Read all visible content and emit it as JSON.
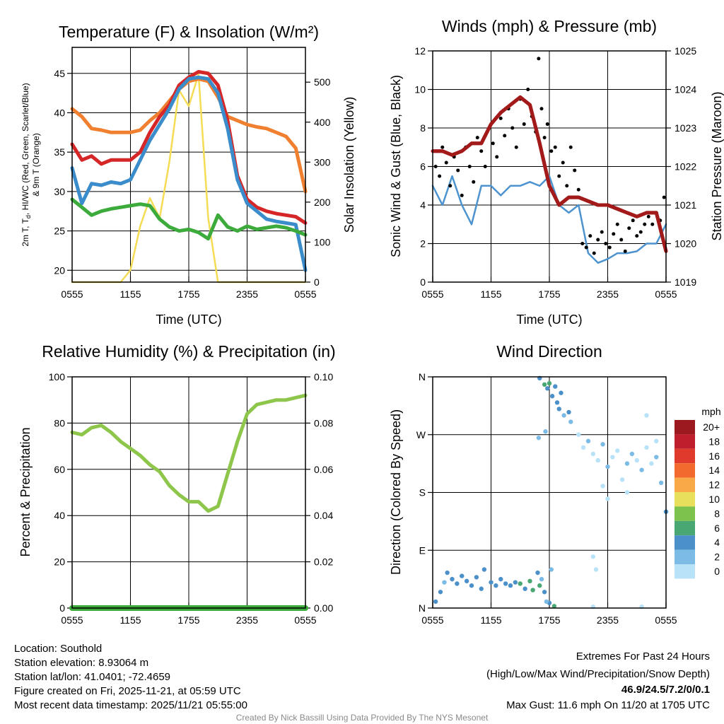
{
  "chart_data": [
    {
      "type": "line",
      "title": "Temperature (F) & Insolation (W/m²)",
      "xlabel": "Time (UTC)",
      "ylabel_parts": [
        "2m T, T",
        "d",
        ", HI/WC (Red, Green, Scarlet/Blue)",
        "& 9m T (Orange)"
      ],
      "ylabel_right": "Solar Insolation (Yellow)",
      "x_hours": [
        0,
        1,
        2,
        3,
        4,
        5,
        6,
        7,
        8,
        9,
        10,
        11,
        12,
        13,
        14,
        15,
        16,
        17,
        18,
        19,
        20,
        21,
        22,
        23,
        24
      ],
      "xtick_labels": [
        "0555",
        "1155",
        "1755",
        "2355",
        "0555"
      ],
      "ylim": [
        18.5,
        48.3
      ],
      "yticks": [
        "20",
        "25",
        "30",
        "35",
        "40",
        "45"
      ],
      "ylim_right": [
        0,
        587
      ],
      "yticks_right": [
        "0",
        "100",
        "200",
        "300",
        "400",
        "500"
      ],
      "series": [
        {
          "name": "9m T",
          "axis": "left",
          "color": "#f08030",
          "values": [
            40.5,
            39.5,
            38,
            37.8,
            37.5,
            37.5,
            37.5,
            37.8,
            39,
            40,
            41.5,
            43,
            44,
            44.3,
            44,
            42,
            39.5,
            39,
            38.5,
            38.2,
            38,
            37.5,
            37,
            35.5,
            30
          ]
        },
        {
          "name": "2m T",
          "axis": "left",
          "color": "#d62728",
          "values": [
            36,
            34,
            34.5,
            33.5,
            34,
            34,
            34,
            35,
            37.5,
            39.5,
            41,
            43.5,
            44.5,
            45.2,
            45,
            43.5,
            39,
            32,
            29,
            28,
            27.5,
            27.2,
            27,
            26.8,
            26
          ]
        },
        {
          "name": "HI/WC",
          "axis": "left",
          "color": "#3b8ccb",
          "values": [
            33,
            28.5,
            31,
            30.8,
            31.2,
            31,
            31.5,
            34,
            36.5,
            38.5,
            40.5,
            43,
            44.3,
            44.5,
            44.3,
            42.5,
            38,
            31.5,
            28.5,
            27.5,
            26.5,
            26.2,
            26,
            25.8,
            20
          ]
        },
        {
          "name": "Td",
          "axis": "left",
          "color": "#3cab3c",
          "values": [
            29,
            28,
            27,
            27.5,
            27.8,
            28,
            28.2,
            28.4,
            28.2,
            26.5,
            25.5,
            25,
            25.2,
            24.8,
            24,
            27,
            25.5,
            25,
            25.6,
            25.2,
            25.4,
            25.6,
            25.4,
            25,
            24.5
          ]
        },
        {
          "name": "Solar Insolation",
          "axis": "right",
          "color": "#f5dc55",
          "values": [
            0,
            0,
            0,
            0,
            0,
            0,
            30,
            140,
            210,
            160,
            300,
            480,
            440,
            520,
            160,
            0,
            0,
            0,
            0,
            0,
            0,
            0,
            0,
            0,
            0
          ]
        }
      ]
    },
    {
      "type": "line",
      "title": "Winds (mph) & Pressure (mb)",
      "xlabel": "Time (UTC)",
      "ylabel": "Sonic Wind & Gust (Blue, Black)",
      "ylabel_right": "Station Pressure (Maroon)",
      "x_hours": [
        0,
        1,
        2,
        3,
        4,
        5,
        6,
        7,
        8,
        9,
        10,
        11,
        12,
        13,
        14,
        15,
        16,
        17,
        18,
        19,
        20,
        21,
        22,
        23,
        24
      ],
      "xtick_labels": [
        "0555",
        "1155",
        "1755",
        "2355",
        "0555"
      ],
      "ylim": [
        0,
        12
      ],
      "yticks": [
        "0",
        "2",
        "4",
        "6",
        "8",
        "10",
        "12"
      ],
      "ylim_right": [
        1019,
        1025
      ],
      "yticks_right": [
        "1019",
        "1020",
        "1021",
        "1022",
        "1023",
        "1024",
        "1025"
      ],
      "series": [
        {
          "name": "Sonic Wind",
          "axis": "left",
          "color": "#4d93cf",
          "values": [
            5,
            4,
            5.5,
            4,
            3,
            5,
            5,
            4.5,
            5,
            5,
            5.2,
            5,
            5.5,
            4,
            3.6,
            4,
            1.5,
            1,
            1.2,
            1.5,
            1.5,
            1.6,
            2,
            2,
            3
          ]
        },
        {
          "name": "Station Pressure",
          "axis": "right",
          "color": "#a31a1a",
          "values": [
            1022.4,
            1022.4,
            1022.3,
            1022.4,
            1022.6,
            1022.6,
            1023.1,
            1023.4,
            1023.6,
            1023.8,
            1023.6,
            1022.6,
            1021.5,
            1021.0,
            1021.2,
            1021.2,
            1021.1,
            1021.0,
            1021.0,
            1020.9,
            1020.8,
            1020.7,
            1020.8,
            1020.8,
            1019.8
          ]
        }
      ],
      "gust_points": [
        [
          0.3,
          6
        ],
        [
          0.7,
          5.5
        ],
        [
          1,
          7
        ],
        [
          1.4,
          6.2
        ],
        [
          1.8,
          5
        ],
        [
          2.2,
          6.5
        ],
        [
          2.6,
          5.8
        ],
        [
          3,
          4.5
        ],
        [
          3.4,
          7
        ],
        [
          3.8,
          6
        ],
        [
          4.2,
          5.2
        ],
        [
          4.6,
          7.5
        ],
        [
          5,
          6.8
        ],
        [
          5.4,
          6
        ],
        [
          5.8,
          8
        ],
        [
          6.2,
          7.2
        ],
        [
          6.6,
          6.5
        ],
        [
          7,
          8.5
        ],
        [
          7.4,
          7.6
        ],
        [
          7.8,
          9
        ],
        [
          8.2,
          8
        ],
        [
          8.6,
          7
        ],
        [
          9,
          9.5
        ],
        [
          9.4,
          8.2
        ],
        [
          9.8,
          10
        ],
        [
          10.2,
          8.6
        ],
        [
          10.6,
          7.8
        ],
        [
          10.9,
          11.6
        ],
        [
          11.2,
          9
        ],
        [
          11.5,
          7.5
        ],
        [
          11.8,
          8.2
        ],
        [
          12.2,
          6.8
        ],
        [
          12.6,
          7
        ],
        [
          13,
          5.5
        ],
        [
          13.4,
          6.2
        ],
        [
          13.8,
          5
        ],
        [
          14.2,
          7
        ],
        [
          14.6,
          5.8
        ],
        [
          15,
          4.8
        ],
        [
          15.4,
          2
        ],
        [
          15.8,
          1.8
        ],
        [
          16.2,
          2.4
        ],
        [
          16.6,
          1.5
        ],
        [
          17,
          2.2
        ],
        [
          17.4,
          2.6
        ],
        [
          17.8,
          2
        ],
        [
          18.2,
          1.8
        ],
        [
          18.6,
          2.5
        ],
        [
          19,
          3
        ],
        [
          19.4,
          2.2
        ],
        [
          19.8,
          1.6
        ],
        [
          20.2,
          2.8
        ],
        [
          20.6,
          3.2
        ],
        [
          21,
          2.4
        ],
        [
          21.4,
          2.6
        ],
        [
          21.8,
          3
        ],
        [
          22.2,
          3.4
        ],
        [
          22.6,
          3
        ],
        [
          23,
          3.6
        ],
        [
          23.4,
          3.2
        ],
        [
          23.8,
          4.4
        ]
      ]
    },
    {
      "type": "line",
      "title": "Relative Humidity (%) & Precipitation (in)",
      "ylabel": "Percent & Precipitation",
      "x_hours": [
        0,
        1,
        2,
        3,
        4,
        5,
        6,
        7,
        8,
        9,
        10,
        11,
        12,
        13,
        14,
        15,
        16,
        17,
        18,
        19,
        20,
        21,
        22,
        23,
        24
      ],
      "xtick_labels": [
        "0555",
        "1155",
        "1755",
        "2355",
        "0555"
      ],
      "ylim": [
        0,
        100
      ],
      "yticks": [
        "0",
        "20",
        "40",
        "60",
        "80",
        "100"
      ],
      "ylim_right": [
        0,
        0.1
      ],
      "yticks_right": [
        "0.00",
        "0.02",
        "0.04",
        "0.06",
        "0.08",
        "0.10"
      ],
      "series": [
        {
          "name": "Relative Humidity",
          "axis": "left",
          "color": "#8dc64a",
          "values": [
            76,
            75,
            78,
            79,
            76,
            72,
            69,
            66,
            62,
            59,
            53,
            49,
            46,
            46,
            42,
            44,
            58,
            72,
            84,
            88,
            89,
            90,
            90,
            91,
            92
          ]
        },
        {
          "name": "Precipitation",
          "axis": "right",
          "color": "#3cab3c",
          "values": [
            0,
            0,
            0,
            0,
            0,
            0,
            0,
            0,
            0,
            0,
            0,
            0,
            0,
            0,
            0,
            0,
            0,
            0,
            0,
            0,
            0,
            0,
            0,
            0,
            0
          ]
        }
      ]
    },
    {
      "type": "scatter",
      "title": "Wind Direction",
      "ylabel": "Direction (Colored By Speed)",
      "xtick_labels": [
        "0555",
        "1155",
        "1755",
        "2355",
        "0555"
      ],
      "ylim": [
        0,
        360
      ],
      "yticks": [
        "N",
        "E",
        "S",
        "W",
        "N"
      ],
      "legend_title": "mph",
      "legend_labels": [
        "20+",
        "18",
        "16",
        "14",
        "12",
        "10",
        "8",
        "6",
        "4",
        "2",
        "0"
      ],
      "legend_colors": [
        "#9c1a1f",
        "#bf1e2d",
        "#e03a2c",
        "#f26a2e",
        "#f9a947",
        "#e8e05a",
        "#7dc24c",
        "#48a772",
        "#4b90c8",
        "#7cbbe6",
        "#b8e2f8"
      ],
      "points_hour_deg_mph": [
        [
          0.3,
          10,
          4
        ],
        [
          0.8,
          25,
          4
        ],
        [
          1.2,
          40,
          3
        ],
        [
          1.5,
          55,
          4
        ],
        [
          2,
          45,
          5
        ],
        [
          2.5,
          38,
          4
        ],
        [
          3,
          50,
          4
        ],
        [
          3.5,
          42,
          5
        ],
        [
          4,
          35,
          4
        ],
        [
          4.5,
          48,
          4
        ],
        [
          5,
          30,
          4
        ],
        [
          5.3,
          60,
          4
        ],
        [
          6,
          40,
          4
        ],
        [
          6.5,
          35,
          5
        ],
        [
          7,
          45,
          4
        ],
        [
          7.5,
          38,
          5
        ],
        [
          8,
          35,
          4
        ],
        [
          8.5,
          40,
          5
        ],
        [
          9,
          38,
          6
        ],
        [
          9.5,
          30,
          4
        ],
        [
          10,
          42,
          6
        ],
        [
          10.3,
          28,
          6
        ],
        [
          10.8,
          55,
          4
        ],
        [
          11,
          35,
          6
        ],
        [
          11.2,
          45,
          3
        ],
        [
          11.5,
          25,
          4
        ],
        [
          12,
          8,
          4
        ],
        [
          12.2,
          60,
          2
        ],
        [
          11.7,
          10,
          2
        ],
        [
          12.5,
          3,
          6
        ],
        [
          11,
          358,
          5
        ],
        [
          11.5,
          348,
          6
        ],
        [
          11.8,
          342,
          4
        ],
        [
          12,
          350,
          6
        ],
        [
          12.3,
          330,
          4
        ],
        [
          12.8,
          320,
          4
        ],
        [
          13,
          310,
          4
        ],
        [
          13.5,
          300,
          3
        ],
        [
          14,
          305,
          4
        ],
        [
          14.2,
          290,
          3
        ],
        [
          13.2,
          335,
          4
        ],
        [
          12.6,
          345,
          4
        ],
        [
          11.6,
          275,
          3
        ],
        [
          10.9,
          265,
          3
        ],
        [
          15,
          270,
          1
        ],
        [
          15.5,
          250,
          1
        ],
        [
          16,
          260,
          2
        ],
        [
          16.5,
          240,
          1
        ],
        [
          17,
          230,
          1
        ],
        [
          17.5,
          255,
          2
        ],
        [
          18,
          220,
          2
        ],
        [
          18.5,
          235,
          1
        ],
        [
          19,
          245,
          1
        ],
        [
          19.5,
          200,
          1
        ],
        [
          20,
          225,
          2
        ],
        [
          20.5,
          240,
          2
        ],
        [
          21,
          230,
          1
        ],
        [
          21.5,
          215,
          2
        ],
        [
          22,
          250,
          1
        ],
        [
          22.5,
          225,
          1
        ],
        [
          23,
          235,
          2
        ],
        [
          23.5,
          195,
          3
        ],
        [
          24,
          150,
          4
        ],
        [
          17.5,
          190,
          1
        ],
        [
          18,
          170,
          0
        ],
        [
          20,
          180,
          1
        ],
        [
          16.5,
          80,
          1
        ],
        [
          16.8,
          60,
          1
        ],
        [
          16.5,
          2,
          0
        ],
        [
          21.5,
          2,
          0
        ],
        [
          22,
          300,
          0
        ],
        [
          23,
          260,
          1
        ]
      ]
    }
  ],
  "footer": {
    "location": "Location: Southold",
    "elevation": "Station elevation: 8.93064 m",
    "latlon": "Station lat/lon: 41.0401; -72.4659",
    "created": "Figure created on Fri, 2025-11-21, at 05:59 UTC",
    "recent": "Most recent data timestamp: 2025/11/21 05:55:00",
    "extremes_title": "Extremes For Past 24 Hours",
    "extremes_sub": "(High/Low/Max Wind/Precipitation/Snow Depth)",
    "extremes_values": "46.9/24.5/7.2/0/0.1",
    "max_gust": "Max Gust: 11.6 mph On 11/20 at 1705 UTC",
    "credit": "Created By Nick Bassill Using Data Provided By The NYS Mesonet",
    "extremes_color": "#d62728"
  }
}
